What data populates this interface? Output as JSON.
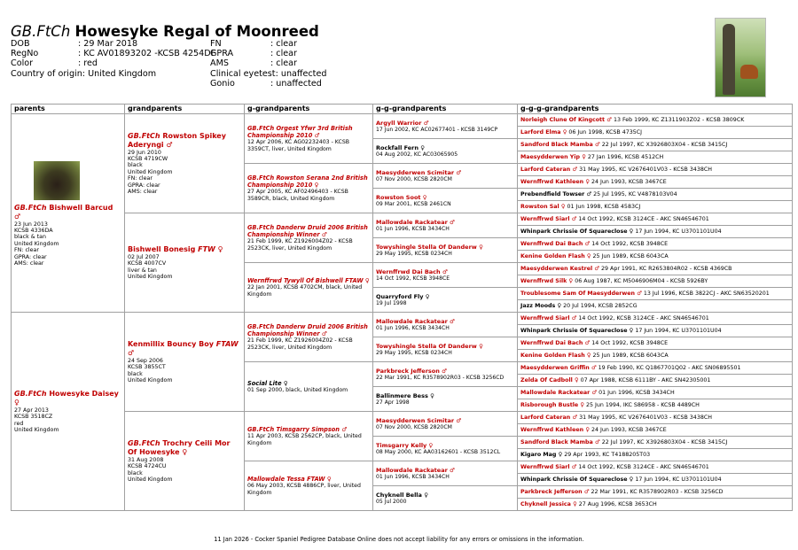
{
  "header": {
    "prefix": "GB.FtCh",
    "name": "Howesyke Regal of Moonreed",
    "separator": ":",
    "info_left": [
      {
        "label": "DOB",
        "value": "29 Mar 2018"
      },
      {
        "label": "RegNo",
        "value": "KC AV01893202 -KCSB 4254DF"
      },
      {
        "label": "Color",
        "value": "red"
      },
      {
        "label": "Country of origin",
        "value": "United Kingdom"
      }
    ],
    "info_right": [
      {
        "label": "FN",
        "value": "clear"
      },
      {
        "label": "GPRA",
        "value": "clear"
      },
      {
        "label": "AMS",
        "value": "clear"
      },
      {
        "label": "Clinical eyetest",
        "value": "unaffected"
      },
      {
        "label": "Gonio",
        "value": "unaffected"
      }
    ]
  },
  "table": {
    "headers": [
      "parents",
      "grandparents",
      "g-grandparents",
      "g-g-grandparents",
      "g-g-g-grandparents"
    ],
    "levels": [
      [
        {
          "prefix": "GB.FtCh",
          "name": "Bishwell Barcud",
          "sex": "♂",
          "color": "#c00000",
          "details": [
            "23 Jun 2013",
            "KCSB 4336DA",
            "black & tan",
            "United Kingdom",
            "FN: clear",
            "GPRA: clear",
            "AMS: clear"
          ]
        },
        {
          "prefix": "GB.FtCh",
          "name": "Howesyke Daisey",
          "sex": "♀",
          "color": "#c00000",
          "details": [
            "27 Apr 2013",
            "KCSB 3518CZ",
            "red",
            "United Kingdom"
          ]
        }
      ],
      [
        {
          "prefix": "GB.FtCh",
          "name": "Rowston Spikey Aderyngi",
          "sex": "♂",
          "color": "#c00000",
          "details": [
            "29 Jun 2010",
            "KCSB 4719CW",
            "black",
            "United Kingdom",
            "FN: clear",
            "GPRA: clear",
            "AMS: clear"
          ]
        },
        {
          "name": "Bishwell Bonesig",
          "suffix": "FTW",
          "sex": "♀",
          "color": "#c00000",
          "details": [
            "02 Jul 2007",
            "KCSB 4007CV",
            "liver & tan",
            "United Kingdom"
          ]
        },
        {
          "name": "Kenmillix Bouncy Boy",
          "suffix": "FTAW",
          "sex": "♂",
          "color": "#c00000",
          "details": [
            "24 Sep 2006",
            "KCSB 3855CT",
            "black",
            "United Kingdom"
          ]
        },
        {
          "prefix": "GB.FtCh",
          "name": "Trochry Ceili Mor Of Howesyke",
          "sex": "♀",
          "color": "#c00000",
          "details": [
            "31 Aug 2008",
            "KCSB 4724CU",
            "black",
            "United Kingdom"
          ]
        }
      ],
      [
        {
          "prefix": "GB.FtCh",
          "name": "Orgest Yfwr 3rd British Championship 2010",
          "sex": "♂",
          "color": "#c00000",
          "details": "12 Apr 2006, KC AG02232403 - KCSB 3359CT, liver, United Kingdom"
        },
        {
          "prefix": "GB.FtCh",
          "name": "Rowston Serana 2nd British Championship 2010",
          "sex": "♀",
          "color": "#c00000",
          "details": "27 Apr 2005, KC AF02496403 - KCSB 3589CR, black, United Kingdom"
        },
        {
          "prefix": "GB.FtCh",
          "name": "Danderw Druid 2006 British Championship Winner",
          "sex": "♂",
          "color": "#c00000",
          "details": "21 Feb 1999, KC Z1926004Z02 - KCSB 2523CK, liver, United Kingdom"
        },
        {
          "name": "Wernffrwd Tywyll Of Bishwell",
          "suffix": "FTAW",
          "sex": "♀",
          "color": "#c00000",
          "details": "22 Jan 2001, KCSB 4702CM, black, United Kingdom"
        },
        {
          "prefix": "GB.FtCh",
          "name": "Danderw Druid 2006 British Championship Winner",
          "sex": "♂",
          "color": "#c00000",
          "details": "21 Feb 1999, KC Z1926004Z02 - KCSB 2523CK, liver, United Kingdom"
        },
        {
          "name": "Social Lite",
          "sex": "♀",
          "color": "#000000",
          "details": "01 Sep 2000, black, United Kingdom"
        },
        {
          "prefix": "GB.FtCh",
          "name": "Timsgarry Simpson",
          "sex": "♂",
          "color": "#c00000",
          "details": "11 Apr 2003, KCSB 2562CP, black, United Kingdom"
        },
        {
          "name": "Mallowdale Tessa",
          "suffix": "FTAW",
          "sex": "♀",
          "color": "#c00000",
          "details": "06 May 2003, KCSB 4886CP, liver, United Kingdom"
        }
      ],
      [
        {
          "name": "Argyll Warrior",
          "sex": "♂",
          "color": "#c00000",
          "details": "17 Jun 2002, KC AC02677401 - KCSB 3149CP"
        },
        {
          "name": "Rockfall Fern",
          "sex": "♀",
          "color": "#000000",
          "details": "04 Aug 2002, KC AC03065905"
        },
        {
          "name": "Maesydderwen Scimitar",
          "sex": "♂",
          "color": "#c00000",
          "details": "07 Nov 2000, KCSB 2820CM"
        },
        {
          "name": "Rowston Soot",
          "sex": "♀",
          "color": "#c00000",
          "details": "09 Mar 2001, KCSB 2461CN"
        },
        {
          "name": "Mallowdale Rackatear",
          "sex": "♂",
          "color": "#c00000",
          "details": "01 Jun 1996, KCSB 3434CH"
        },
        {
          "name": "Towyshingle Stella Of Danderw",
          "sex": "♀",
          "color": "#c00000",
          "details": "29 May 1995, KCSB 0234CH"
        },
        {
          "name": "Wernffrwd Dai Bach",
          "sex": "♂",
          "color": "#c00000",
          "details": "14 Oct 1992, KCSB 3948CE"
        },
        {
          "name": "Quarryford Fly",
          "sex": "♀",
          "color": "#000000",
          "details": "19 Jul 1998"
        },
        {
          "name": "Mallowdale Rackatear",
          "sex": "♂",
          "color": "#c00000",
          "details": "01 Jun 1996, KCSB 3434CH"
        },
        {
          "name": "Towyshingle Stella Of Danderw",
          "sex": "♀",
          "color": "#c00000",
          "details": "29 May 1995, KCSB 0234CH"
        },
        {
          "name": "Parkbreck Jefferson",
          "sex": "♂",
          "color": "#c00000",
          "details": "22 Mar 1991, KC R3578902R03 - KCSB 3256CD"
        },
        {
          "name": "Ballinmere Bess",
          "sex": "♀",
          "color": "#000000",
          "details": "27 Apr 1998"
        },
        {
          "name": "Maesydderwen Scimitar",
          "sex": "♂",
          "color": "#c00000",
          "details": "07 Nov 2000, KCSB 2820CM"
        },
        {
          "name": "Timsgarry Kelly",
          "sex": "♀",
          "color": "#c00000",
          "details": "08 May 2000, KC AA03162601 - KCSB 3512CL"
        },
        {
          "name": "Mallowdale Rackatear",
          "sex": "♂",
          "color": "#c00000",
          "details": "01 Jun 1996, KCSB 3434CH"
        },
        {
          "name": "Chyknell Bella",
          "sex": "♀",
          "color": "#000000",
          "details": "05 Jul 2000"
        }
      ],
      [
        {
          "name": "Norleigh Clune Of Kingcott",
          "sex": "♂",
          "color": "#c00000",
          "details": "13 Feb 1999, KC Z1311903Z02 - KCSB 3809CK"
        },
        {
          "name": "Larford Elma",
          "sex": "♀",
          "color": "#c00000",
          "details": "06 Jun 1998, KCSB 4735CJ"
        },
        {
          "name": "Sandford Black Mamba",
          "sex": "♂",
          "color": "#c00000",
          "details": "22 Jul 1997, KC X3926803X04 - KCSB 3415CJ"
        },
        {
          "name": "Maesydderwen Yip",
          "sex": "♀",
          "color": "#c00000",
          "details": "27 Jan 1996, KCSB 4512CH"
        },
        {
          "name": "Larford Cateran",
          "sex": "♂",
          "color": "#c00000",
          "details": "31 May 1995, KC V2676401V03 - KCSB 3438CH"
        },
        {
          "name": "Wernffrwd Kathleen",
          "sex": "♀",
          "color": "#c00000",
          "details": "24 Jun 1993, KCSB 3467CE"
        },
        {
          "name": "Prebendfield Towser",
          "sex": "♂",
          "color": "#000000",
          "details": "25 Jul 1995, KC V4878103V04"
        },
        {
          "name": "Rowston Sal",
          "sex": "♀",
          "color": "#c00000",
          "details": "01 Jun 1998, KCSB 4583CJ"
        },
        {
          "name": "Wernffrwd Siarl",
          "sex": "♂",
          "color": "#c00000",
          "details": "14 Oct 1992, KCSB 3124CE - AKC SN46546701"
        },
        {
          "name": "Whinpark Chrissie Of Squareclose",
          "sex": "♀",
          "color": "#000000",
          "details": "17 Jun 1994, KC U3701101U04"
        },
        {
          "name": "Wernffrwd Dai Bach",
          "sex": "♂",
          "color": "#c00000",
          "details": "14 Oct 1992, KCSB 3948CE"
        },
        {
          "name": "Kenine Golden Flash",
          "sex": "♀",
          "color": "#c00000",
          "details": "25 Jun 1989, KCSB 6043CA"
        },
        {
          "name": "Maesydderwen Kestrel",
          "sex": "♂",
          "color": "#c00000",
          "details": "29 Apr 1991, KC R2653804R02 - KCSB 4369CB"
        },
        {
          "name": "Wernffrwd Silk",
          "sex": "♀",
          "color": "#c00000",
          "details": "06 Aug 1987, KC M5046906M04 - KCSB 5926BY"
        },
        {
          "name": "Troublesome Sam Of Maesydderwen",
          "sex": "♂",
          "color": "#c00000",
          "details": "13 Jul 1996, KCSB 3822CJ - AKC SN63520201"
        },
        {
          "name": "Jazz Moods",
          "sex": "♀",
          "color": "#000000",
          "details": "20 Jul 1994, KCSB 2852CG"
        },
        {
          "name": "Wernffrwd Siarl",
          "sex": "♂",
          "color": "#c00000",
          "details": "14 Oct 1992, KCSB 3124CE - AKC SN46546701"
        },
        {
          "name": "Whinpark Chrissie Of Squareclose",
          "sex": "♀",
          "color": "#000000",
          "details": "17 Jun 1994, KC U3701101U04"
        },
        {
          "name": "Wernffrwd Dai Bach",
          "sex": "♂",
          "color": "#c00000",
          "details": "14 Oct 1992, KCSB 3948CE"
        },
        {
          "name": "Kenine Golden Flash",
          "sex": "♀",
          "color": "#c00000",
          "details": "25 Jun 1989, KCSB 6043CA"
        },
        {
          "name": "Maesydderwen Griffin",
          "sex": "♂",
          "color": "#c00000",
          "details": "19 Feb 1990, KC Q1867701Q02 - AKC SN06895501"
        },
        {
          "name": "Zelda Of Cadboll",
          "sex": "♀",
          "color": "#c00000",
          "details": "07 Apr 1988, KCSB 6111BY - AKC SN42305001"
        },
        {
          "name": "Mallowdale Rackatear",
          "sex": "♂",
          "color": "#c00000",
          "details": "01 Jun 1996, KCSB 3434CH"
        },
        {
          "name": "Risborough Bustle",
          "sex": "♀",
          "color": "#c00000",
          "details": "25 Jun 1994, IKC S86958 - KCSB 4489CH"
        },
        {
          "name": "Larford Cateran",
          "sex": "♂",
          "color": "#c00000",
          "details": "31 May 1995, KC V2676401V03 - KCSB 3438CH"
        },
        {
          "name": "Wernffrwd Kathleen",
          "sex": "♀",
          "color": "#c00000",
          "details": "24 Jun 1993, KCSB 3467CE"
        },
        {
          "name": "Sandford Black Mamba",
          "sex": "♂",
          "color": "#c00000",
          "details": "22 Jul 1997, KC X3926803X04 - KCSB 3415CJ"
        },
        {
          "name": "Kigaro Mag",
          "sex": "♀",
          "color": "#000000",
          "details": "29 Apr 1993, KC T4188205T03"
        },
        {
          "name": "Wernffrwd Siarl",
          "sex": "♂",
          "color": "#c00000",
          "details": "14 Oct 1992, KCSB 3124CE - AKC SN46546701"
        },
        {
          "name": "Whinpark Chrissie Of Squareclose",
          "sex": "♀",
          "color": "#000000",
          "details": "17 Jun 1994, KC U3701101U04"
        },
        {
          "name": "Parkbreck Jefferson",
          "sex": "♂",
          "color": "#c00000",
          "details": "22 Mar 1991, KC R3578902R03 - KCSB 3256CD"
        },
        {
          "name": "Chyknell Jessica",
          "sex": "♀",
          "color": "#c00000",
          "details": "27 Aug 1996, KCSB 3653CH"
        }
      ]
    ]
  },
  "footer": "11 Jan 2026 - Cocker Spaniel Pedigree Database Online does not accept liability for any errors or omissions in the information."
}
